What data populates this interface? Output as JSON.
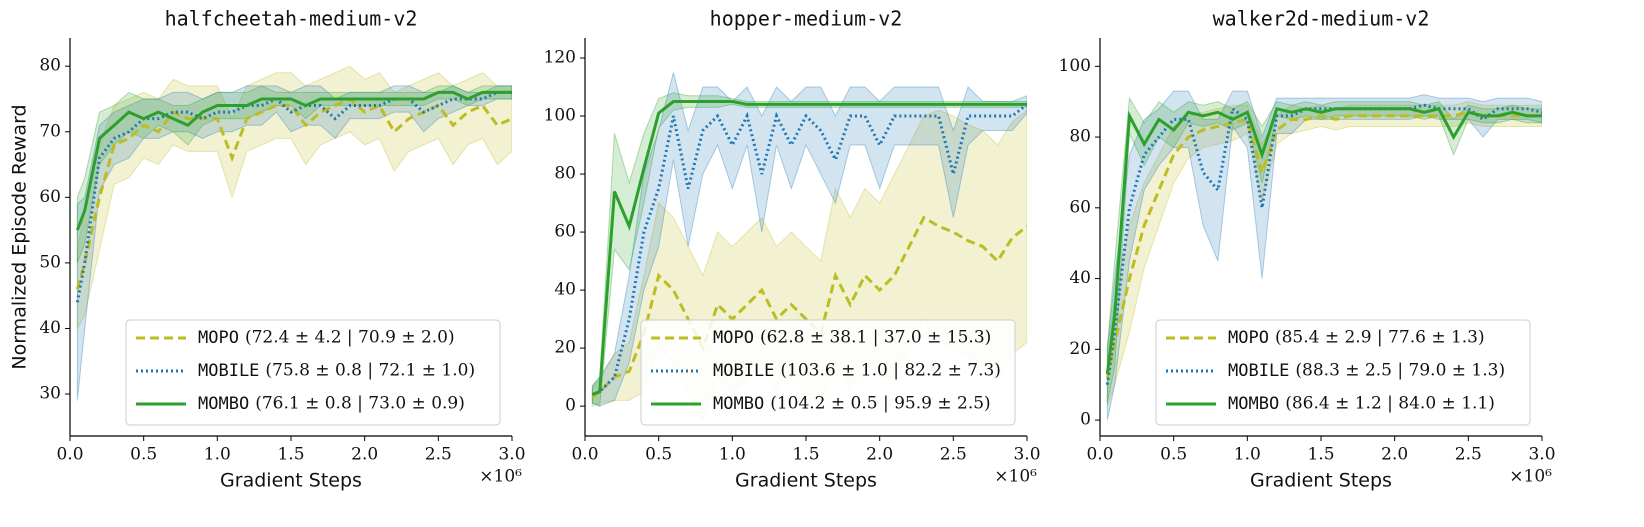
{
  "chart_data": [
    {
      "type": "line",
      "title": "halfcheetah-medium-v2",
      "xlabel": "Gradient Steps",
      "ylabel": "Normalized Episode Reward",
      "x_offset_label": "×10⁶",
      "x": [
        0.05,
        0.1,
        0.2,
        0.3,
        0.4,
        0.5,
        0.6,
        0.7,
        0.8,
        0.9,
        1.0,
        1.1,
        1.2,
        1.3,
        1.4,
        1.5,
        1.6,
        1.7,
        1.8,
        1.9,
        2.0,
        2.1,
        2.2,
        2.3,
        2.4,
        2.5,
        2.6,
        2.7,
        2.8,
        2.9,
        3.0
      ],
      "xlim": [
        0,
        3.0
      ],
      "xticks": [
        {
          "value": 0,
          "label": "0.0"
        },
        0.5,
        {
          "value": 1,
          "label": "1.0"
        },
        1.5,
        {
          "value": 2,
          "label": "2.0"
        },
        2.5,
        {
          "value": 3,
          "label": "3.0"
        }
      ],
      "ylim": [
        23.6,
        84.3
      ],
      "yticks": [
        30,
        40,
        50,
        60,
        70,
        80
      ],
      "series": [
        {
          "name": "MOPO",
          "summary": "(72.4 ± 4.2 | 70.9 ± 2.0)",
          "color": "#bcbd22",
          "dash": "dashed",
          "values": [
            46,
            50,
            60,
            68,
            69,
            71,
            70,
            73,
            72,
            72,
            72,
            66,
            72,
            73,
            74,
            74,
            71,
            73,
            74,
            75,
            73,
            74,
            70,
            72,
            73,
            74,
            71,
            73,
            74,
            71,
            72
          ],
          "errors": [
            6,
            8,
            8,
            6,
            6,
            5,
            5,
            5,
            5,
            5,
            5,
            6,
            5,
            5,
            5,
            5,
            6,
            5,
            5,
            5,
            5,
            5,
            6,
            5,
            5,
            5,
            6,
            5,
            5,
            6,
            5
          ]
        },
        {
          "name": "MOBILE",
          "summary": "(75.8 ± 0.8 | 72.1 ± 1.0)",
          "color": "#1f77b4",
          "dash": "dotted",
          "values": [
            44,
            50,
            66,
            69,
            70,
            72,
            72,
            73,
            73,
            72,
            73,
            73,
            74,
            74,
            75,
            73,
            74,
            74,
            72,
            74,
            74,
            74,
            75,
            75,
            73,
            74,
            75,
            75,
            75,
            76,
            76
          ],
          "errors": [
            15,
            10,
            5,
            4,
            4,
            3,
            3,
            3,
            3,
            3,
            3,
            3,
            3,
            3,
            2,
            3,
            3,
            3,
            3,
            2,
            2,
            2,
            2,
            2,
            3,
            2,
            2,
            1,
            1,
            1,
            1
          ]
        },
        {
          "name": "MOMBO",
          "summary": "(76.1 ± 0.8 | 73.0 ± 0.9)",
          "color": "#2ca02c",
          "dash": "solid",
          "values": [
            55,
            58,
            69,
            71,
            73,
            72,
            73,
            72,
            71,
            73,
            74,
            74,
            74,
            75,
            75,
            75,
            74,
            75,
            75,
            75,
            75,
            75,
            75,
            75,
            75,
            76,
            76,
            75,
            76,
            76,
            76
          ],
          "errors": [
            5,
            5,
            4,
            3,
            3,
            3,
            2,
            2,
            3,
            2,
            2,
            2,
            2,
            2,
            1,
            1,
            2,
            1,
            1,
            1,
            1,
            1,
            1,
            1,
            1,
            1,
            1,
            1,
            1,
            1,
            1
          ]
        }
      ]
    },
    {
      "type": "line",
      "title": "hopper-medium-v2",
      "xlabel": "Gradient Steps",
      "x_offset_label": "×10⁶",
      "x": [
        0.05,
        0.1,
        0.2,
        0.3,
        0.4,
        0.5,
        0.6,
        0.7,
        0.8,
        0.9,
        1.0,
        1.1,
        1.2,
        1.3,
        1.4,
        1.5,
        1.6,
        1.7,
        1.8,
        1.9,
        2.0,
        2.1,
        2.2,
        2.3,
        2.4,
        2.5,
        2.6,
        2.7,
        2.8,
        2.9,
        3.0
      ],
      "xlim": [
        0,
        3.0
      ],
      "xticks": [
        {
          "value": 0,
          "label": "0.0"
        },
        0.5,
        {
          "value": 1,
          "label": "1.0"
        },
        1.5,
        {
          "value": 2,
          "label": "2.0"
        },
        2.5,
        {
          "value": 3,
          "label": "3.0"
        }
      ],
      "ylim": [
        -10.3,
        126.9
      ],
      "yticks": [
        0,
        20,
        40,
        60,
        80,
        100,
        120
      ],
      "series": [
        {
          "name": "MOPO",
          "summary": "(62.8 ± 38.1 | 37.0 ± 15.3)",
          "color": "#bcbd22",
          "dash": "dashed",
          "values": [
            3,
            5,
            10,
            12,
            25,
            45,
            40,
            30,
            20,
            35,
            30,
            35,
            40,
            30,
            35,
            30,
            25,
            45,
            35,
            45,
            40,
            45,
            55,
            65,
            62,
            60,
            57,
            55,
            50,
            58,
            62
          ],
          "errors": [
            3,
            4,
            8,
            10,
            20,
            25,
            25,
            25,
            25,
            25,
            25,
            25,
            25,
            25,
            25,
            25,
            25,
            30,
            30,
            30,
            30,
            35,
            35,
            35,
            40,
            40,
            40,
            40,
            40,
            40,
            40
          ]
        },
        {
          "name": "MOBILE",
          "summary": "(103.6 ± 1.0 | 82.2 ± 7.3)",
          "color": "#1f77b4",
          "dash": "dotted",
          "values": [
            4,
            5,
            10,
            30,
            60,
            75,
            100,
            75,
            95,
            100,
            90,
            100,
            80,
            100,
            90,
            100,
            95,
            85,
            100,
            100,
            90,
            100,
            100,
            100,
            100,
            80,
            100,
            100,
            100,
            100,
            104
          ],
          "errors": [
            3,
            5,
            8,
            15,
            20,
            20,
            15,
            20,
            15,
            10,
            15,
            10,
            20,
            10,
            15,
            10,
            15,
            15,
            10,
            10,
            15,
            10,
            10,
            10,
            10,
            15,
            10,
            5,
            5,
            5,
            3
          ]
        },
        {
          "name": "MOMBO",
          "summary": "(104.2 ± 0.5 | 95.9 ± 2.5)",
          "color": "#2ca02c",
          "dash": "solid",
          "values": [
            4,
            5,
            74,
            62,
            82,
            101,
            105,
            105,
            105,
            105,
            105,
            104,
            104,
            104,
            104,
            104,
            104,
            104,
            104,
            104,
            104,
            104,
            104,
            104,
            104,
            104,
            104,
            104,
            104,
            104,
            104
          ],
          "errors": [
            3,
            5,
            20,
            15,
            12,
            5,
            3,
            2,
            2,
            2,
            1,
            1,
            1,
            1,
            1,
            1,
            1,
            1,
            1,
            1,
            1,
            1,
            1,
            1,
            1,
            1,
            1,
            1,
            1,
            1,
            1
          ]
        }
      ]
    },
    {
      "type": "line",
      "title": "walker2d-medium-v2",
      "xlabel": "Gradient Steps",
      "x_offset_label": "×10⁶",
      "x": [
        0.05,
        0.1,
        0.2,
        0.3,
        0.4,
        0.5,
        0.6,
        0.7,
        0.8,
        0.9,
        1.0,
        1.1,
        1.2,
        1.3,
        1.4,
        1.5,
        1.6,
        1.7,
        1.8,
        1.9,
        2.0,
        2.1,
        2.2,
        2.3,
        2.4,
        2.5,
        2.6,
        2.7,
        2.8,
        2.9,
        3.0
      ],
      "xlim": [
        0,
        3.0
      ],
      "xticks": [
        {
          "value": 0,
          "label": "0.0"
        },
        0.5,
        {
          "value": 1,
          "label": "1.0"
        },
        1.5,
        {
          "value": 2,
          "label": "2.0"
        },
        2.5,
        {
          "value": 3,
          "label": "3.0"
        }
      ],
      "ylim": [
        -4.5,
        108
      ],
      "yticks": [
        0,
        20,
        40,
        60,
        80,
        100
      ],
      "series": [
        {
          "name": "MOPO",
          "summary": "(85.4 ± 2.9 | 77.6 ± 1.3)",
          "color": "#bcbd22",
          "dash": "dashed",
          "values": [
            12,
            22,
            40,
            55,
            65,
            75,
            80,
            82,
            83,
            84,
            85,
            70,
            82,
            85,
            85,
            86,
            85,
            86,
            86,
            86,
            86,
            86,
            86,
            86,
            86,
            87,
            86,
            86,
            86,
            86,
            86
          ],
          "errors": [
            8,
            12,
            15,
            12,
            10,
            8,
            6,
            5,
            5,
            5,
            4,
            8,
            4,
            4,
            3,
            3,
            3,
            3,
            3,
            3,
            3,
            3,
            3,
            3,
            3,
            3,
            3,
            3,
            3,
            3,
            3
          ]
        },
        {
          "name": "MOBILE",
          "summary": "(88.3 ± 2.5 | 79.0 ± 1.3)",
          "color": "#1f77b4",
          "dash": "dotted",
          "values": [
            10,
            25,
            60,
            75,
            80,
            85,
            85,
            70,
            65,
            88,
            85,
            60,
            86,
            86,
            88,
            88,
            88,
            88,
            88,
            88,
            88,
            88,
            89,
            88,
            88,
            88,
            85,
            88,
            88,
            88,
            87
          ],
          "errors": [
            10,
            15,
            15,
            10,
            8,
            8,
            8,
            15,
            20,
            5,
            8,
            20,
            5,
            5,
            3,
            3,
            3,
            3,
            3,
            3,
            3,
            3,
            3,
            3,
            3,
            3,
            5,
            3,
            3,
            3,
            3
          ]
        },
        {
          "name": "MOMBO",
          "summary": "(86.4 ± 1.2 | 84.0 ± 1.1)",
          "color": "#2ca02c",
          "dash": "solid",
          "values": [
            13,
            30,
            86,
            78,
            85,
            82,
            87,
            86,
            87,
            85,
            87,
            75,
            88,
            87,
            88,
            87,
            88,
            88,
            88,
            88,
            88,
            88,
            87,
            88,
            80,
            87,
            86,
            86,
            87,
            86,
            86
          ],
          "errors": [
            8,
            15,
            5,
            6,
            5,
            5,
            3,
            3,
            3,
            3,
            3,
            8,
            2,
            2,
            2,
            2,
            2,
            2,
            2,
            2,
            2,
            2,
            2,
            2,
            5,
            2,
            2,
            2,
            2,
            2,
            2
          ]
        }
      ]
    }
  ]
}
